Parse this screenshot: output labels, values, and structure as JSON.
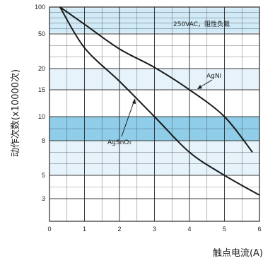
{
  "chart_data": {
    "type": "line",
    "xlabel": "触点电流(A)",
    "ylabel": "动作次数(x10000次)",
    "x_ticks": [
      0,
      1,
      2,
      3,
      4,
      5,
      6
    ],
    "y_ticks": [
      3,
      5,
      8,
      10,
      15,
      20,
      50,
      100
    ],
    "xlim": [
      0,
      6
    ],
    "y_tick_labels": [
      "3",
      "5",
      "8",
      "10",
      "15",
      "20",
      "50",
      "100"
    ],
    "grid": true,
    "condition_label": "250VAC，阻性负载",
    "series": [
      {
        "name": "AgNi",
        "x": [
          0.3,
          1.0,
          2.0,
          3.0,
          4.0,
          5.0,
          5.8
        ],
        "y": [
          100,
          68,
          37,
          21,
          15,
          10,
          7
        ]
      },
      {
        "name": "AgSnO₂",
        "x": [
          0.3,
          1.0,
          2.0,
          3.0,
          4.0,
          5.0,
          6.0
        ],
        "y": [
          100,
          38,
          17,
          10,
          7,
          5,
          3.3
        ]
      }
    ],
    "colors": {
      "background": "#ffffff",
      "band_light": "#e6f3fb",
      "band_mid": "#bfe2f4",
      "band_dark": "#8fcde9",
      "grid": "#2a2a2a",
      "curve": "#1a1a1a"
    }
  }
}
